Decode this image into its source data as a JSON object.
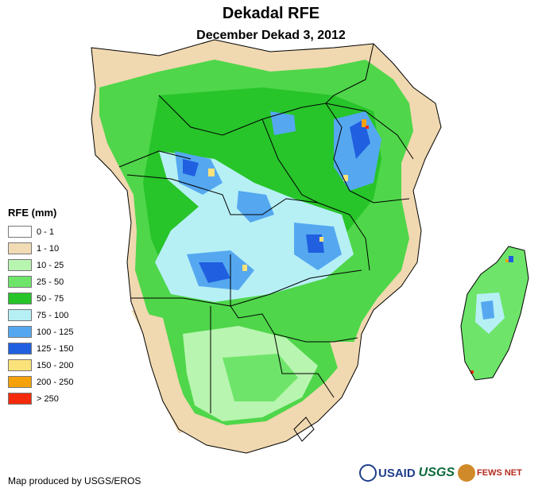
{
  "header": {
    "title": "Dekadal RFE",
    "subtitle": "December Dekad 3, 2012"
  },
  "legend": {
    "title": "RFE (mm)",
    "items": [
      {
        "label": "0 - 1",
        "color": "#ffffff"
      },
      {
        "label": "1 - 10",
        "color": "#f2dcb6"
      },
      {
        "label": "10 - 25",
        "color": "#b8f5b0"
      },
      {
        "label": "25 - 50",
        "color": "#6ee56a"
      },
      {
        "label": "50 - 75",
        "color": "#27c42a"
      },
      {
        "label": "75 - 100",
        "color": "#b6f0f5"
      },
      {
        "label": "100 - 125",
        "color": "#55a8f0"
      },
      {
        "label": "125 - 150",
        "color": "#1f5fe0"
      },
      {
        "label": "150 - 200",
        "color": "#fbe27a"
      },
      {
        "label": "200 - 250",
        "color": "#f5a10a"
      },
      {
        "label": "> 250",
        "color": "#f52a0a"
      }
    ]
  },
  "footer": {
    "credit": "Map produced by USGS/EROS",
    "logos": {
      "usaid": "USAID",
      "usgs": "USGS",
      "fews": "FEWS NET"
    }
  },
  "icons": {
    "usaid": "usaid-seal-icon",
    "usgs": "usgs-logo-icon",
    "fews": "fews-net-logo-icon"
  }
}
